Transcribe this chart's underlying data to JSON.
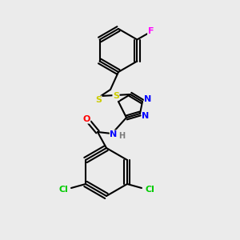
{
  "background_color": "#ebebeb",
  "bond_color": "#000000",
  "atom_colors": {
    "F": "#ff00ff",
    "S": "#cccc00",
    "N": "#0000ff",
    "O": "#ff0000",
    "Cl": "#00cc00",
    "H": "#7a7a7a",
    "C": "#000000"
  },
  "figsize": [
    3.0,
    3.0
  ],
  "dpi": 100
}
